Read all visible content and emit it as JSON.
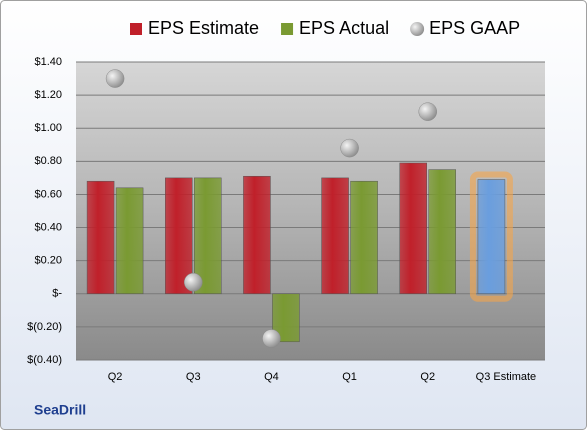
{
  "chart_data": {
    "type": "bar",
    "categories": [
      "Q2",
      "Q3",
      "Q4",
      "Q1",
      "Q2",
      "Q3 Estimate"
    ],
    "series": [
      {
        "name": "EPS Estimate",
        "color": "#c0202a",
        "values": [
          0.68,
          0.7,
          0.71,
          0.7,
          0.79,
          0.69
        ]
      },
      {
        "name": "EPS Actual",
        "color": "#7a9a32",
        "values": [
          0.64,
          0.7,
          -0.29,
          0.68,
          0.75,
          null
        ]
      },
      {
        "name": "EPS GAAP",
        "color": "#a8a8a8",
        "marker": "sphere",
        "values": [
          1.3,
          0.07,
          -0.27,
          0.88,
          1.1,
          null
        ]
      }
    ],
    "highlight": {
      "series": 0,
      "index": 5,
      "color": "#6a9ede",
      "glow": "#f5a54a"
    },
    "ylim": [
      -0.4,
      1.4
    ],
    "yticks": [
      {
        "value": -0.4,
        "label": "$(0.40)"
      },
      {
        "value": -0.2,
        "label": "$(0.20)"
      },
      {
        "value": 0,
        "label": "$-"
      },
      {
        "value": 0.2,
        "label": "$0.20"
      },
      {
        "value": 0.4,
        "label": "$0.40"
      },
      {
        "value": 0.6,
        "label": "$0.60"
      },
      {
        "value": 0.8,
        "label": "$0.80"
      },
      {
        "value": 1.0,
        "label": "$1.00"
      },
      {
        "value": 1.2,
        "label": "$1.20"
      },
      {
        "value": 1.4,
        "label": "$1.40"
      }
    ],
    "grid": true,
    "legend": "top",
    "footer": "SeaDrill"
  }
}
